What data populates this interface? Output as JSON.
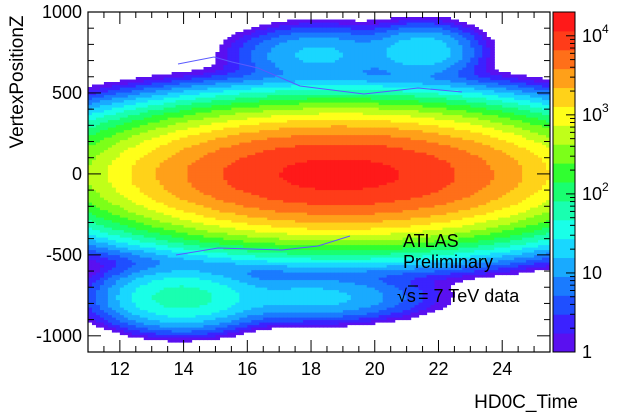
{
  "chart_data": {
    "type": "heatmap",
    "title": "",
    "xlabel": "HD0C_Time",
    "ylabel": "VertexPositionZ",
    "xlim": [
      11,
      25.5
    ],
    "ylim": [
      -1100,
      1000
    ],
    "x_ticks": [
      12,
      14,
      16,
      18,
      20,
      22,
      24
    ],
    "y_ticks": [
      -1000,
      -500,
      0,
      500,
      1000
    ],
    "x_tick_labels": [
      "12",
      "14",
      "16",
      "18",
      "20",
      "22",
      "24"
    ],
    "y_tick_labels": [
      "-1000",
      "-500",
      "0",
      "500",
      "1000"
    ],
    "z_scale": "log",
    "zlim": [
      1,
      20000
    ],
    "colorbar_ticks": [
      1,
      10,
      100,
      1000,
      10000
    ],
    "colorbar_labels": [
      "1",
      "10",
      "10",
      "10",
      "10"
    ],
    "colorbar_exponents": [
      "",
      "",
      "2",
      "3",
      "4"
    ],
    "colorbar_colors": [
      "#5a10f0",
      "#3b22ff",
      "#1f4fff",
      "#1a7bff",
      "#19aaff",
      "#19d7ff",
      "#19ffe8",
      "#19ffb0",
      "#19ff70",
      "#30ff30",
      "#7cff19",
      "#c0ff19",
      "#ffff19",
      "#ffd219",
      "#ffa019",
      "#ff6f19",
      "#ff3c19",
      "#ff1919"
    ],
    "clusters": [
      {
        "x": 18.9,
        "y": 0,
        "peak": 14000,
        "sx": 3.0,
        "sy": 155
      },
      {
        "x": 13.9,
        "y": -760,
        "peak": 60,
        "sx": 1.2,
        "sy": 95
      },
      {
        "x": 18.0,
        "y": -760,
        "peak": 20,
        "sx": 1.8,
        "sy": 75
      },
      {
        "x": 18.2,
        "y": 740,
        "peak": 18,
        "sx": 1.3,
        "sy": 90
      },
      {
        "x": 21.5,
        "y": 760,
        "peak": 25,
        "sx": 0.9,
        "sy": 85
      },
      {
        "x": 19.3,
        "y": 380,
        "peak": 4,
        "sx": 1.4,
        "sy": 45
      },
      {
        "x": 17.5,
        "y": -330,
        "peak": 3,
        "sx": 2.2,
        "sy": 55
      }
    ],
    "annotations": {
      "experiment": "ATLAS",
      "status": "Preliminary",
      "energy_sqrt": "√s",
      "energy_rest": "= 7 TeV data"
    }
  }
}
